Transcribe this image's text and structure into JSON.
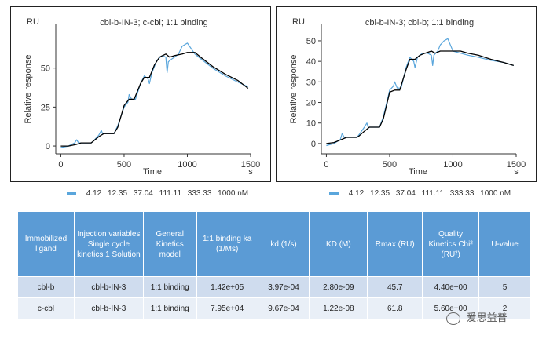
{
  "chart_data": [
    {
      "type": "line",
      "title": "cbl-b-IN-3; c-cbl; 1:1 binding",
      "unit_label": "RU",
      "xlabel": "Time",
      "x_unit": "s",
      "ylabel": "Relative response",
      "xlim": [
        -40,
        1500
      ],
      "ylim": [
        -5,
        78
      ],
      "xticks": [
        0,
        500,
        1000,
        1500
      ],
      "yticks": [
        0,
        25,
        50
      ],
      "series": [
        {
          "role": "fit",
          "color": "#000000",
          "x": [
            0,
            60,
            120,
            160,
            200,
            240,
            255,
            300,
            340,
            380,
            420,
            450,
            500,
            540,
            580,
            630,
            660,
            700,
            740,
            780,
            830,
            860,
            900,
            960,
            1000,
            1060,
            1120,
            1200,
            1300,
            1400,
            1480
          ],
          "y": [
            0,
            0,
            1,
            2,
            2,
            2,
            3,
            6,
            8,
            8,
            8,
            12,
            26,
            30,
            30,
            40,
            44,
            44,
            52,
            57,
            59,
            57,
            58,
            59,
            60,
            60,
            56,
            51,
            46,
            42,
            37
          ]
        },
        {
          "role": "data",
          "color": "#5aa6dc",
          "x": [
            0,
            60,
            110,
            125,
            140,
            180,
            240,
            255,
            300,
            320,
            330,
            370,
            420,
            450,
            500,
            530,
            540,
            560,
            590,
            630,
            660,
            690,
            700,
            720,
            760,
            800,
            830,
            840,
            850,
            880,
            900,
            930,
            960,
            1000,
            1060,
            1120,
            1200,
            1300,
            1400,
            1480
          ],
          "y": [
            -1,
            0,
            2,
            4,
            2,
            2,
            2,
            3,
            7,
            10,
            8,
            8,
            8,
            13,
            25,
            28,
            33,
            30,
            30,
            40,
            45,
            43,
            40,
            47,
            55,
            58,
            57,
            47,
            54,
            56,
            57,
            59,
            64,
            66,
            59,
            55,
            50,
            45,
            41,
            38
          ]
        }
      ]
    },
    {
      "type": "line",
      "title": "cbl-b-IN-3; cbl-b; 1:1 binding",
      "unit_label": "RU",
      "xlabel": "Time",
      "x_unit": "s",
      "ylabel": "Relative response",
      "xlim": [
        -40,
        1500
      ],
      "ylim": [
        -5,
        58
      ],
      "xticks": [
        0,
        500,
        1000,
        1500
      ],
      "yticks": [
        0,
        10,
        20,
        30,
        40,
        50
      ],
      "series": [
        {
          "role": "fit",
          "color": "#000000",
          "x": [
            0,
            60,
            120,
            160,
            200,
            240,
            255,
            300,
            340,
            380,
            420,
            450,
            500,
            540,
            580,
            630,
            660,
            700,
            740,
            780,
            830,
            860,
            900,
            960,
            1000,
            1060,
            1120,
            1200,
            1300,
            1400,
            1480
          ],
          "y": [
            0,
            0.5,
            2,
            3,
            3,
            3,
            3.5,
            6,
            8,
            8,
            8,
            12,
            25,
            26,
            26,
            36,
            41,
            41,
            43,
            44,
            45,
            44,
            45,
            45,
            45,
            45,
            44,
            43,
            41,
            39.5,
            38
          ]
        },
        {
          "role": "data",
          "color": "#5aa6dc",
          "x": [
            0,
            60,
            110,
            125,
            140,
            180,
            240,
            255,
            300,
            320,
            330,
            370,
            420,
            450,
            500,
            530,
            540,
            560,
            590,
            630,
            660,
            690,
            700,
            720,
            760,
            800,
            830,
            840,
            850,
            880,
            900,
            930,
            960,
            1000,
            1060,
            1120,
            1200,
            1300,
            1400,
            1480
          ],
          "y": [
            -1,
            0,
            2,
            5,
            3,
            3,
            3,
            4,
            8,
            10,
            8,
            8,
            8,
            13,
            26,
            28,
            30,
            27,
            27,
            37,
            42,
            40,
            37,
            42,
            44,
            44,
            43,
            38,
            43,
            45,
            48,
            50,
            51,
            45,
            44,
            43,
            42,
            40.5,
            39.5,
            38
          ]
        }
      ]
    }
  ],
  "legend": {
    "color": "#5aa6dc",
    "values": [
      "4.12",
      "12.35",
      "37.04",
      "111.11",
      "333.33",
      "1000 nM"
    ]
  },
  "table": {
    "header_color": "#5b9bd5",
    "headers": [
      "Immobilized ligand",
      "Injection variables Single cycle kinetics 1 Solution",
      "General Kinetics model",
      "1:1 binding ka (1/Ms)",
      "kd (1/s)",
      "KD (M)",
      "Rmax (RU)",
      "Quality Kinetics Chi² (RU²)",
      "U-value"
    ],
    "rows": [
      [
        "cbl-b",
        "cbl-b-IN-3",
        "1:1 binding",
        "1.42e+05",
        "3.97e-04",
        "2.80e-09",
        "45.7",
        "4.40e+00",
        "5"
      ],
      [
        "c-cbl",
        "cbl-b-IN-3",
        "1:1 binding",
        "7.95e+04",
        "9.67e-04",
        "1.22e-08",
        "61.8",
        "5.60e+00",
        "2"
      ]
    ]
  },
  "watermark": {
    "text": "爱思益普",
    "icon": "wechat-icon"
  }
}
